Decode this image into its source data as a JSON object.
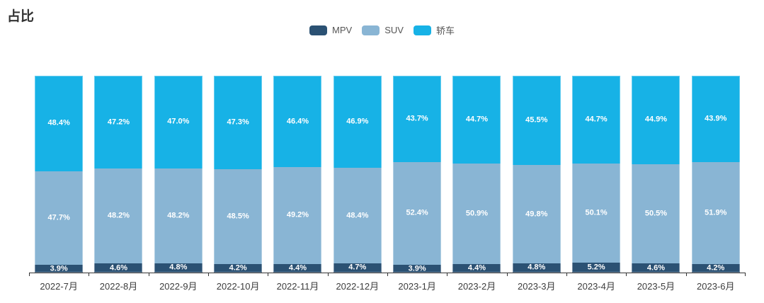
{
  "page": {
    "title": "占比"
  },
  "chart_data": {
    "type": "bar",
    "stacked": true,
    "percent_stacked": true,
    "title": "占比",
    "unit": "%",
    "categories": [
      "2022-7月",
      "2022-8月",
      "2022-9月",
      "2022-10月",
      "2022-11月",
      "2022-12月",
      "2023-1月",
      "2023-2月",
      "2023-3月",
      "2023-4月",
      "2023-5月",
      "2023-6月"
    ],
    "series": [
      {
        "name": "MPV",
        "color": "#2b5173",
        "values": [
          3.9,
          4.6,
          4.8,
          4.2,
          4.4,
          4.7,
          3.9,
          4.4,
          4.8,
          5.2,
          4.6,
          4.2
        ]
      },
      {
        "name": "SUV",
        "color": "#89b5d4",
        "values": [
          47.7,
          48.2,
          48.2,
          48.5,
          49.2,
          48.4,
          52.4,
          50.9,
          49.8,
          50.1,
          50.5,
          51.9
        ]
      },
      {
        "name": "轿车",
        "color": "#17b2e6",
        "values": [
          48.4,
          47.2,
          47.0,
          47.3,
          46.4,
          46.9,
          43.7,
          44.7,
          45.5,
          44.7,
          44.9,
          43.9
        ]
      }
    ],
    "ylim": [
      0,
      100
    ],
    "label_format": "{value}%",
    "legend_position": "top-center",
    "grid": false,
    "colors": {
      "axis_line": "#333333",
      "axis_label": "#3c3c3c",
      "legend_text": "#555555",
      "title_text": "#333333",
      "segment_label": "#ffffff",
      "background": "#ffffff"
    }
  }
}
